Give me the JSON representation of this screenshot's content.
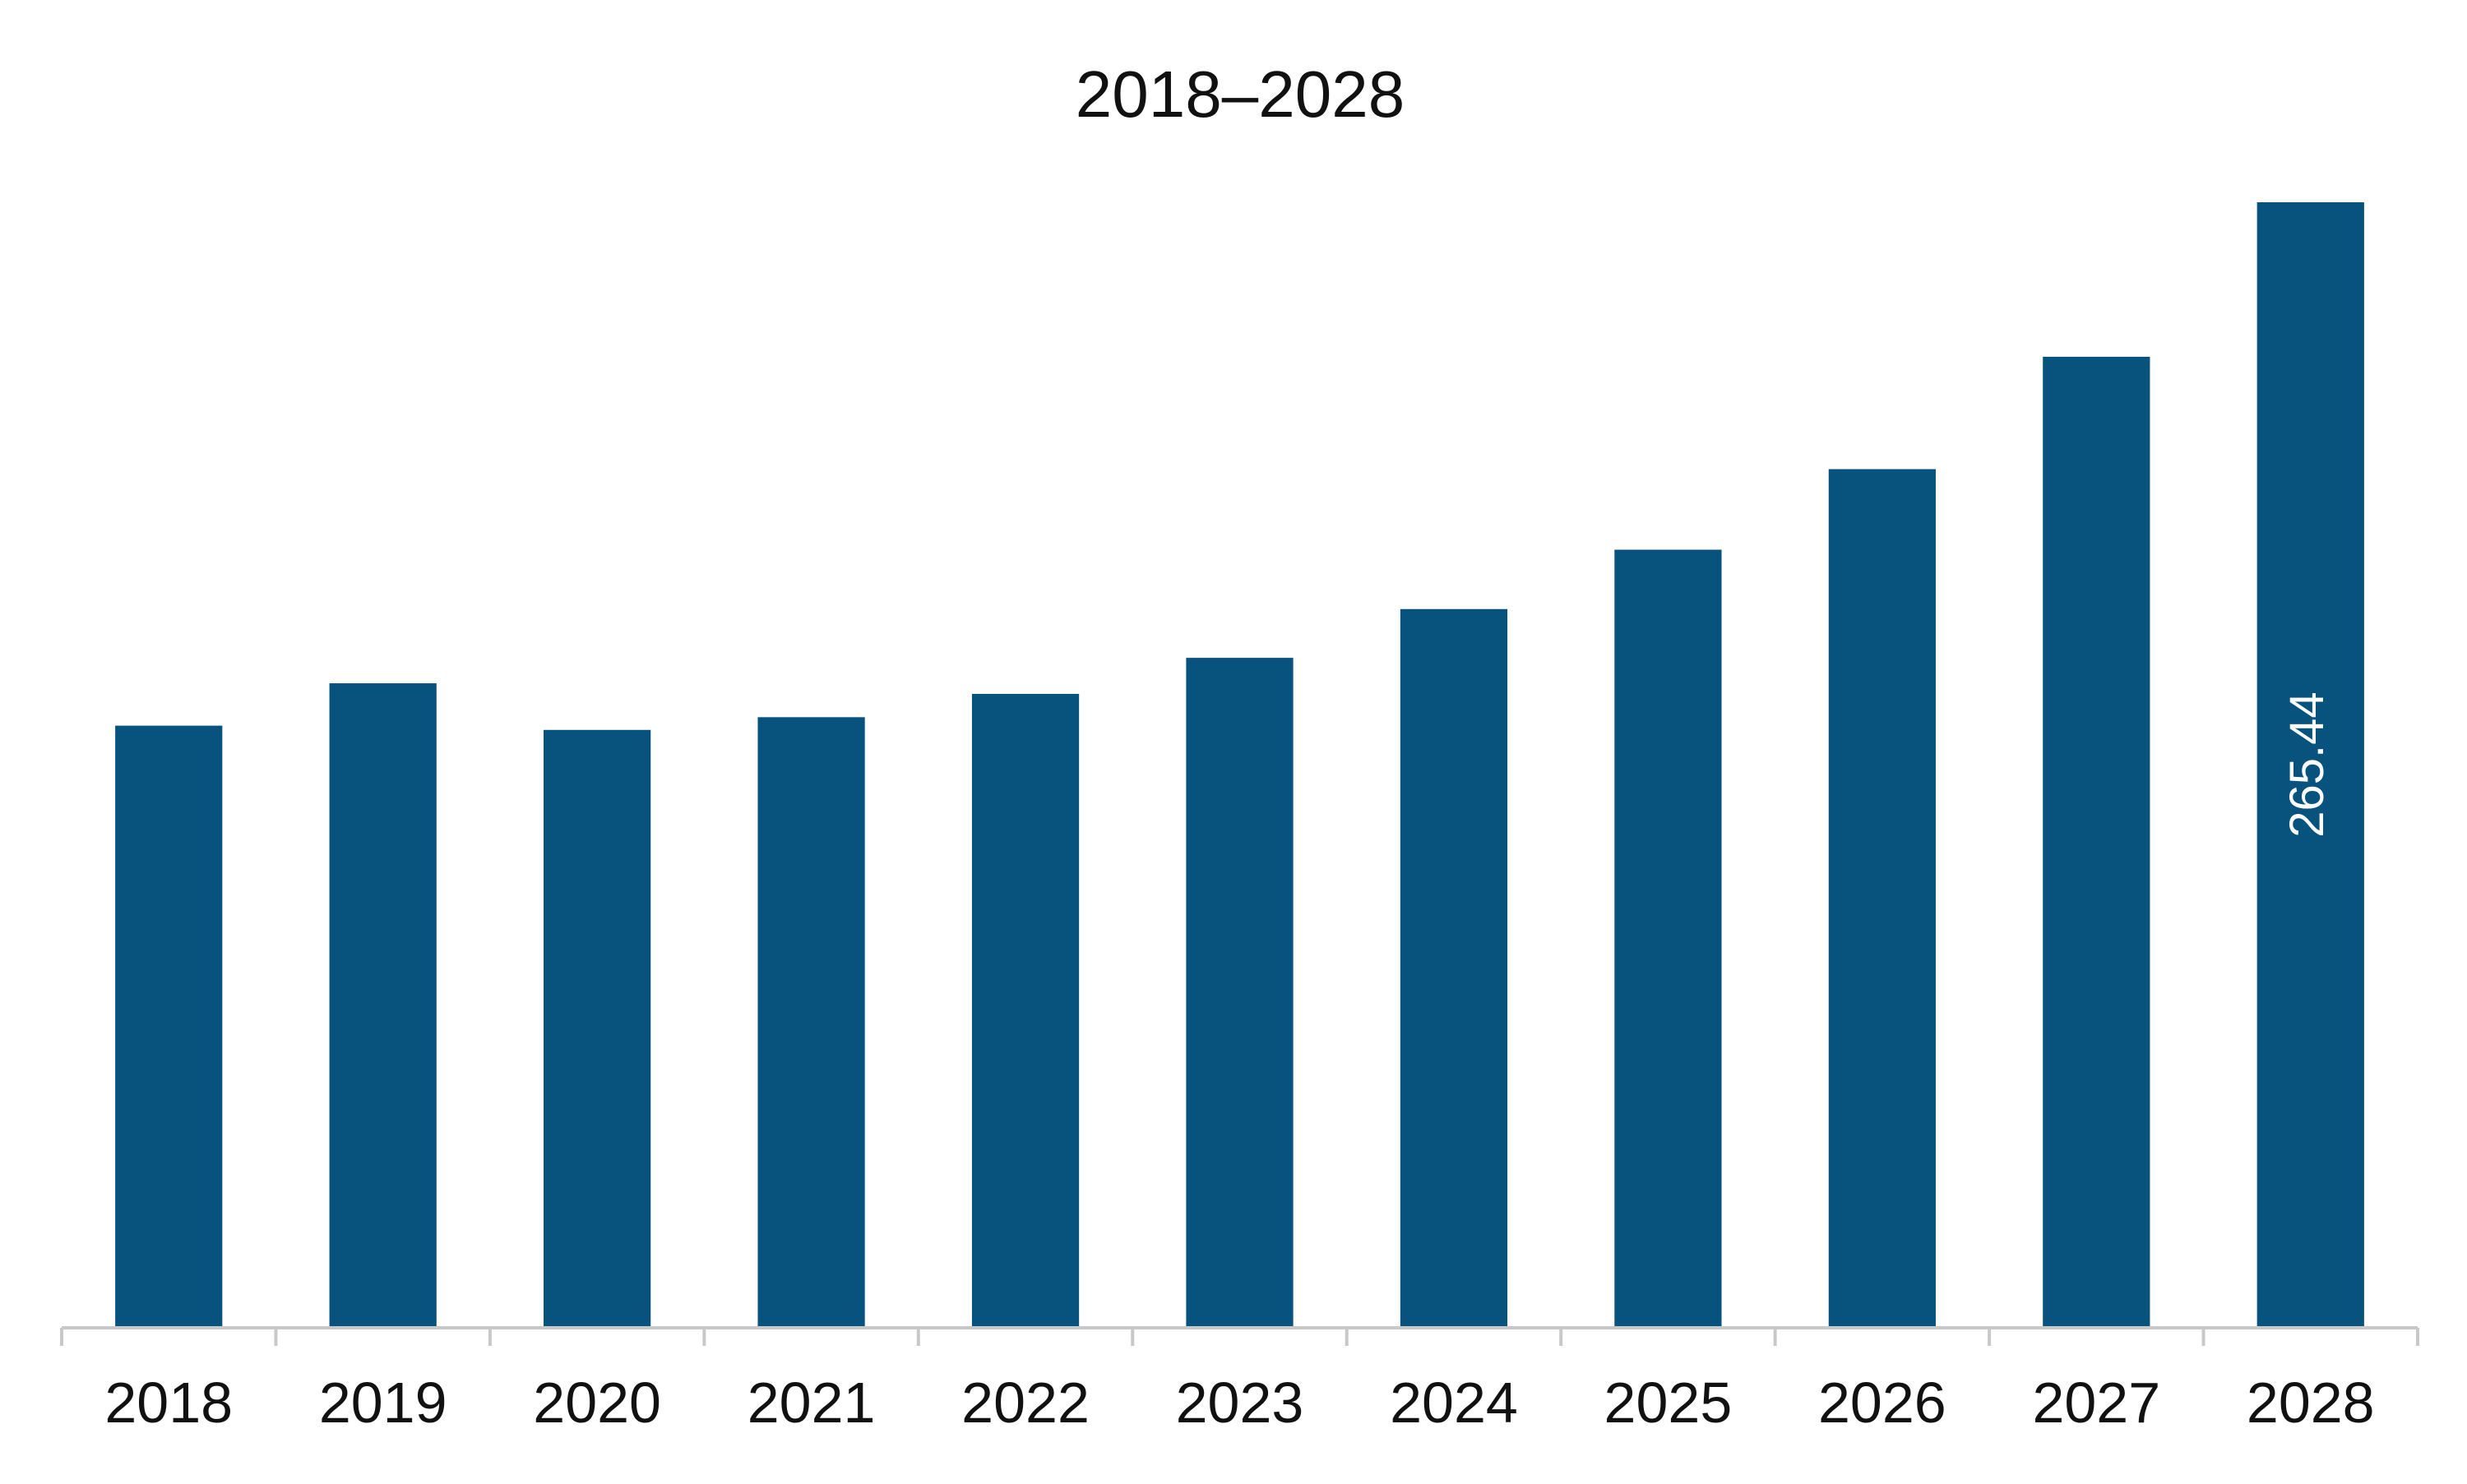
{
  "chart_data": {
    "type": "bar",
    "title": "2018–2028",
    "xlabel": "",
    "ylabel": "",
    "categories": [
      "2018",
      "2019",
      "2020",
      "2021",
      "2022",
      "2023",
      "2024",
      "2025",
      "2026",
      "2027",
      "2028"
    ],
    "values": [
      142,
      152,
      141,
      144,
      149.5,
      158,
      169.5,
      183.5,
      202.5,
      229,
      265.44
    ],
    "data_labels": [
      {
        "category": "2028",
        "text": "265.44"
      }
    ],
    "ylim": [
      0,
      265.44
    ],
    "grid": false,
    "legend": "none",
    "colors": {
      "bar": "#08527e",
      "axis": "#c8c8c8",
      "text": "#111111",
      "data_label": "#ffffff"
    }
  }
}
